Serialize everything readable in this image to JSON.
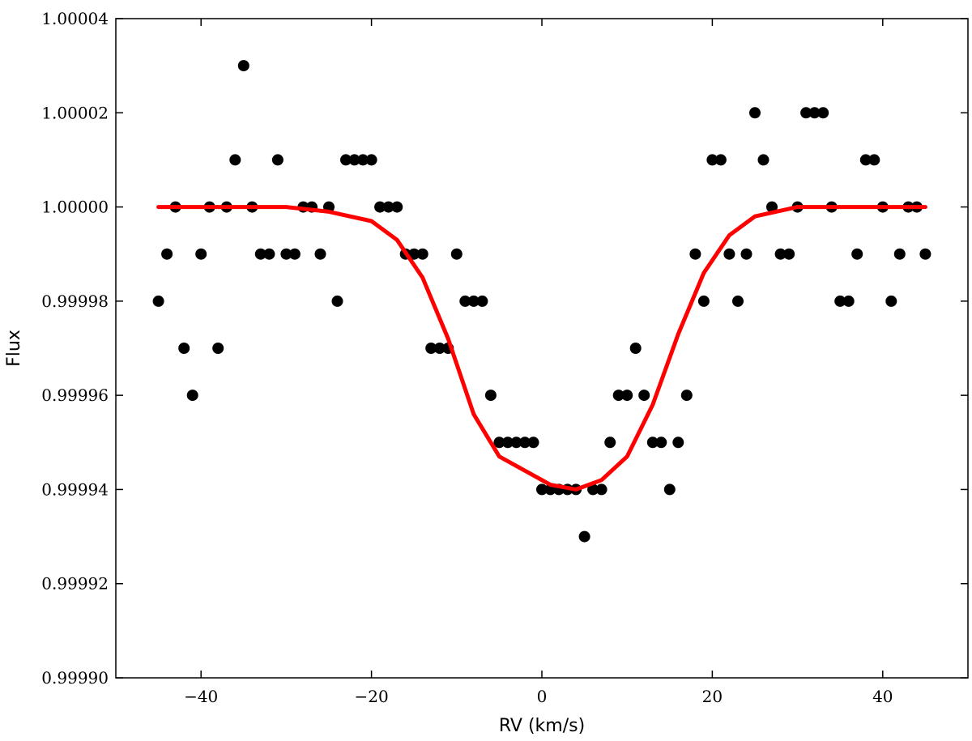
{
  "chart_data": {
    "type": "scatter",
    "title": "",
    "xlabel": "RV (km/s)",
    "ylabel": "Flux",
    "xlim": [
      -50,
      50
    ],
    "ylim": [
      0.9999,
      1.00004
    ],
    "grid": false,
    "x_ticks": [
      -40,
      -20,
      0,
      20,
      40
    ],
    "x_tick_labels": [
      "−40",
      "−20",
      "0",
      "20",
      "40"
    ],
    "y_ticks": [
      0.9999,
      0.99992,
      0.99994,
      0.99996,
      0.99998,
      1.0,
      1.00002,
      1.00004
    ],
    "y_tick_labels": [
      "0.99990",
      "0.99992",
      "0.99994",
      "0.99996",
      "0.99998",
      "1.00000",
      "1.00002",
      "1.00004"
    ],
    "series": [
      {
        "kind": "scatter",
        "color": "#000000",
        "x": [
          -45,
          -44,
          -43,
          -42,
          -41,
          -40,
          -39,
          -38,
          -37,
          -36,
          -35,
          -34,
          -33,
          -32,
          -31,
          -30,
          -29,
          -28,
          -27,
          -26,
          -25,
          -24,
          -23,
          -22,
          -21,
          -20,
          -19,
          -18,
          -17,
          -16,
          -15,
          -14,
          -13,
          -12,
          -11,
          -10,
          -9,
          -8,
          -7,
          -6,
          -5,
          -4,
          -3,
          -2,
          -1,
          0,
          1,
          2,
          3,
          4,
          5,
          6,
          7,
          8,
          9,
          10,
          11,
          12,
          13,
          14,
          15,
          16,
          17,
          18,
          19,
          20,
          21,
          22,
          23,
          24,
          25,
          26,
          27,
          28,
          29,
          30,
          31,
          32,
          33,
          34,
          35,
          36,
          37,
          38,
          39,
          40,
          41,
          42,
          43,
          44,
          45
        ],
        "y": [
          0.99998,
          0.99999,
          1.0,
          0.99997,
          0.99996,
          0.99999,
          1.0,
          0.99997,
          1.0,
          1.00001,
          1.00003,
          1.0,
          0.99999,
          0.99999,
          1.00001,
          0.99999,
          0.99999,
          1.0,
          1.0,
          0.99999,
          1.0,
          0.99998,
          1.00001,
          1.00001,
          1.00001,
          1.00001,
          1.0,
          1.0,
          1.0,
          0.99999,
          0.99999,
          0.99999,
          0.99997,
          0.99997,
          0.99997,
          0.99999,
          0.99998,
          0.99998,
          0.99998,
          0.99996,
          0.99995,
          0.99995,
          0.99995,
          0.99995,
          0.99995,
          0.99994,
          0.99994,
          0.99994,
          0.99994,
          0.99994,
          0.99993,
          0.99994,
          0.99994,
          0.99995,
          0.99996,
          0.99996,
          0.99997,
          0.99996,
          0.99995,
          0.99995,
          0.99994,
          0.99995,
          0.99996,
          0.99999,
          0.99998,
          1.00001,
          1.00001,
          0.99999,
          0.99998,
          0.99999,
          1.00002,
          1.00001,
          1.0,
          0.99999,
          0.99999,
          1.0,
          1.00002,
          1.00002,
          1.00002,
          1.0,
          0.99998,
          0.99998,
          0.99999,
          1.00001,
          1.00001,
          1.0,
          0.99998,
          0.99999,
          1.0,
          1.0,
          0.99999
        ]
      },
      {
        "kind": "line",
        "color": "#ff0000",
        "x": [
          -45,
          -40,
          -35,
          -30,
          -25,
          -20,
          -17,
          -14,
          -11,
          -8,
          -5,
          -2,
          1,
          4,
          7,
          10,
          13,
          16,
          19,
          22,
          25,
          30,
          35,
          40,
          45
        ],
        "y": [
          1.0,
          1.0,
          1.0,
          1.0,
          0.999999,
          0.999997,
          0.999993,
          0.999985,
          0.999972,
          0.999956,
          0.999947,
          0.999944,
          0.999941,
          0.99994,
          0.999942,
          0.999947,
          0.999958,
          0.999973,
          0.999986,
          0.999994,
          0.999998,
          1.0,
          1.0,
          1.0,
          1.0
        ]
      }
    ]
  }
}
